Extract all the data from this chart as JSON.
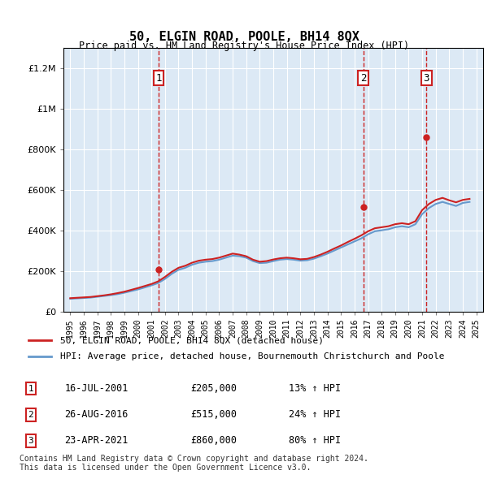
{
  "title": "50, ELGIN ROAD, POOLE, BH14 8QX",
  "subtitle": "Price paid vs. HM Land Registry's House Price Index (HPI)",
  "legend_line1": "50, ELGIN ROAD, POOLE, BH14 8QX (detached house)",
  "legend_line2": "HPI: Average price, detached house, Bournemouth Christchurch and Poole",
  "footer1": "Contains HM Land Registry data © Crown copyright and database right 2024.",
  "footer2": "This data is licensed under the Open Government Licence v3.0.",
  "transactions": [
    {
      "num": 1,
      "date": "16-JUL-2001",
      "price": 205000,
      "pct": "13%",
      "direction": "↑",
      "year": 2001.54
    },
    {
      "num": 2,
      "date": "26-AUG-2016",
      "price": 515000,
      "pct": "24%",
      "direction": "↑",
      "year": 2016.65
    },
    {
      "num": 3,
      "date": "23-APR-2021",
      "price": 860000,
      "pct": "80%",
      "direction": "↑",
      "year": 2021.31
    }
  ],
  "hpi_color": "#6699cc",
  "price_color": "#cc2222",
  "background_color": "#dce9f5",
  "plot_bg": "#dce9f5",
  "ylim": [
    0,
    1300000
  ],
  "yticks": [
    0,
    200000,
    400000,
    600000,
    800000,
    1000000,
    1200000
  ],
  "xlim_start": 1994.5,
  "xlim_end": 2025.5,
  "hpi_data": {
    "years": [
      1995,
      1995.5,
      1996,
      1996.5,
      1997,
      1997.5,
      1998,
      1998.5,
      1999,
      1999.5,
      2000,
      2000.5,
      2001,
      2001.5,
      2002,
      2002.5,
      2003,
      2003.5,
      2004,
      2004.5,
      2005,
      2005.5,
      2006,
      2006.5,
      2007,
      2007.5,
      2008,
      2008.5,
      2009,
      2009.5,
      2010,
      2010.5,
      2011,
      2011.5,
      2012,
      2012.5,
      2013,
      2013.5,
      2014,
      2014.5,
      2015,
      2015.5,
      2016,
      2016.5,
      2017,
      2017.5,
      2018,
      2018.5,
      2019,
      2019.5,
      2020,
      2020.5,
      2021,
      2021.5,
      2022,
      2022.5,
      2023,
      2023.5,
      2024,
      2024.5
    ],
    "hpi_values": [
      62000,
      64000,
      66000,
      68000,
      72000,
      76000,
      80000,
      85000,
      92000,
      100000,
      108000,
      118000,
      128000,
      140000,
      160000,
      185000,
      205000,
      215000,
      230000,
      240000,
      245000,
      248000,
      255000,
      265000,
      275000,
      272000,
      265000,
      248000,
      238000,
      240000,
      248000,
      255000,
      258000,
      255000,
      250000,
      252000,
      260000,
      272000,
      285000,
      300000,
      315000,
      330000,
      345000,
      360000,
      380000,
      395000,
      400000,
      405000,
      415000,
      420000,
      415000,
      430000,
      480000,
      510000,
      530000,
      540000,
      530000,
      520000,
      535000,
      540000
    ],
    "price_values": [
      65000,
      67000,
      69000,
      71000,
      75000,
      79000,
      84000,
      90000,
      97000,
      106000,
      115000,
      125000,
      135000,
      148000,
      170000,
      195000,
      215000,
      225000,
      240000,
      250000,
      255000,
      258000,
      265000,
      275000,
      285000,
      280000,
      272000,
      255000,
      245000,
      248000,
      256000,
      262000,
      265000,
      262000,
      257000,
      259000,
      268000,
      280000,
      294000,
      310000,
      325000,
      342000,
      358000,
      375000,
      395000,
      410000,
      415000,
      420000,
      430000,
      435000,
      430000,
      445000,
      500000,
      530000,
      550000,
      560000,
      548000,
      538000,
      550000,
      555000
    ]
  }
}
